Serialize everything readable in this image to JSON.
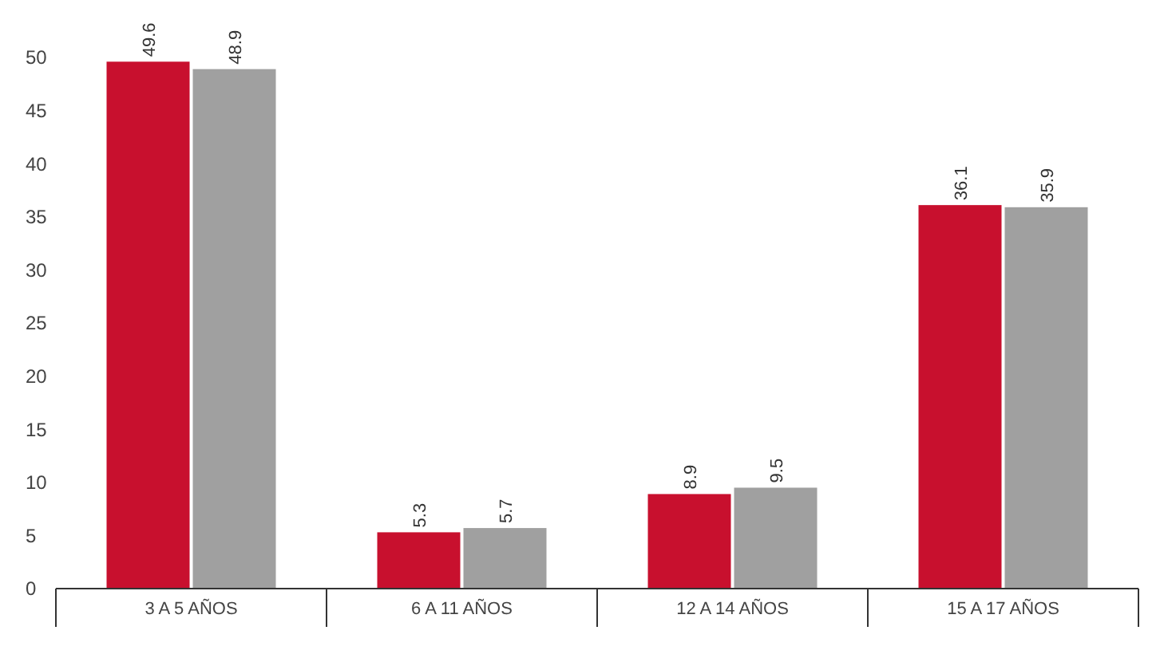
{
  "chart_data": {
    "type": "bar",
    "categories": [
      "3 A 5 AÑOS",
      "6 A 11 AÑOS",
      "12 A 14 AÑOS",
      "15 A 17 AÑOS"
    ],
    "series": [
      {
        "color": "#c8102e",
        "values": [
          49.6,
          5.3,
          8.9,
          36.1
        ]
      },
      {
        "color": "#a0a0a0",
        "values": [
          48.9,
          5.7,
          9.5,
          35.9
        ]
      }
    ],
    "ylim": [
      0,
      50
    ],
    "yticks": [
      0,
      5,
      10,
      15,
      20,
      25,
      30,
      35,
      40,
      45,
      50
    ],
    "data_labels": true,
    "grid": false
  }
}
